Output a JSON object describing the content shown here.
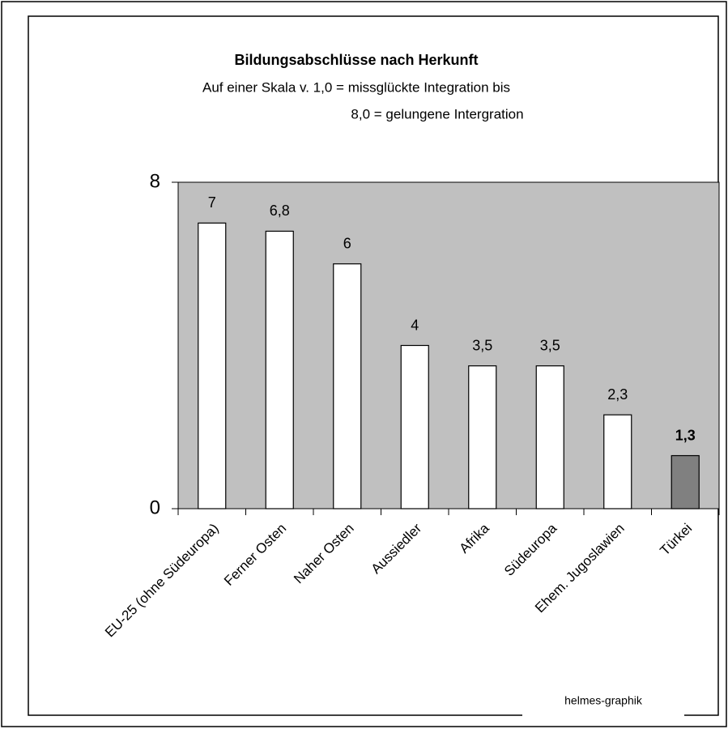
{
  "chart_data": {
    "type": "bar",
    "title": "Bildungsabschlüsse nach Herkunft",
    "subtitle": [
      "Auf einer Skala v. 1,0 = missglückte Integration bis",
      "8,0 = gelungene Intergration"
    ],
    "categories": [
      "EU-25 (ohne Südeuropa)",
      "Ferner Osten",
      "Naher Osten",
      "Aussiedler",
      "Afrika",
      "Südeuropa",
      "Ehem. Jugoslawien",
      "Türkei"
    ],
    "values": [
      7,
      6.8,
      6,
      4,
      3.5,
      3.5,
      2.3,
      1.3
    ],
    "value_labels": [
      "7",
      "6,8",
      "6",
      "4",
      "3,5",
      "3,5",
      "2,3",
      "1,3"
    ],
    "value_label_weights": [
      "normal",
      "normal",
      "normal",
      "normal",
      "normal",
      "normal",
      "normal",
      "bold"
    ],
    "colors": [
      "#ffffff",
      "#ffffff",
      "#ffffff",
      "#ffffff",
      "#ffffff",
      "#ffffff",
      "#ffffff",
      "#808080"
    ],
    "plot_background": "#c0c0c0",
    "ylim": [
      0,
      8
    ],
    "yticks": [
      0,
      8
    ],
    "footer": "helmes-graphik"
  }
}
